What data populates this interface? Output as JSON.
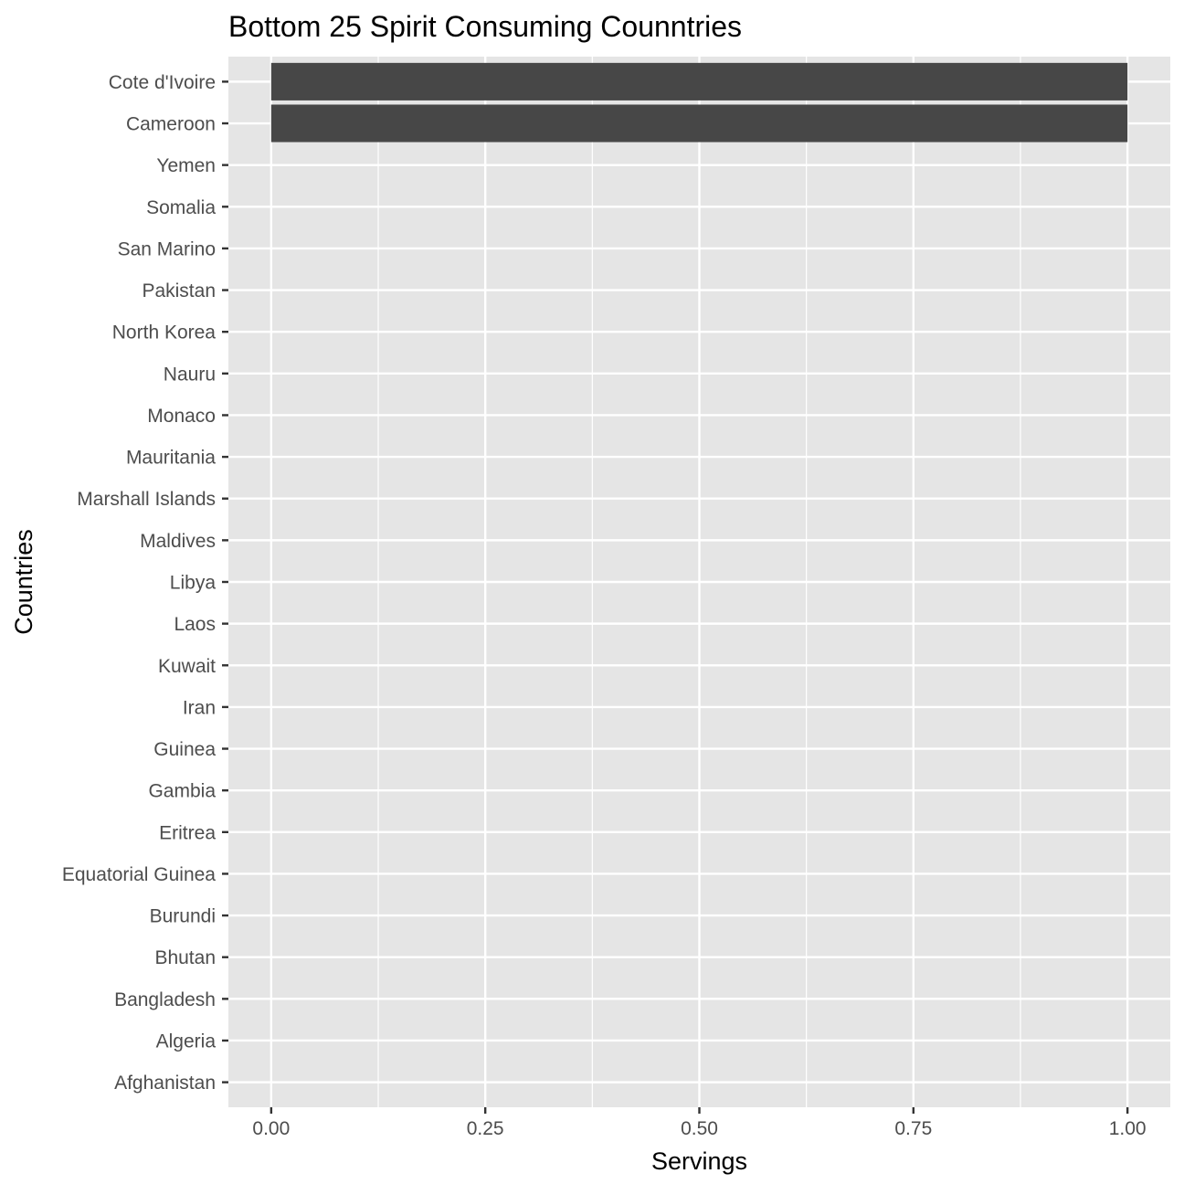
{
  "chart_data": {
    "type": "bar",
    "orientation": "horizontal",
    "title": "Bottom 25 Spirit Consuming Counntries",
    "xlabel": "Servings",
    "ylabel": "Countries",
    "categories": [
      "Cote d'Ivoire",
      "Cameroon",
      "Yemen",
      "Somalia",
      "San Marino",
      "Pakistan",
      "North Korea",
      "Nauru",
      "Monaco",
      "Mauritania",
      "Marshall Islands",
      "Maldives",
      "Libya",
      "Laos",
      "Kuwait",
      "Iran",
      "Guinea",
      "Gambia",
      "Eritrea",
      "Equatorial Guinea",
      "Burundi",
      "Bhutan",
      "Bangladesh",
      "Algeria",
      "Afghanistan"
    ],
    "values": [
      1,
      1,
      0,
      0,
      0,
      0,
      0,
      0,
      0,
      0,
      0,
      0,
      0,
      0,
      0,
      0,
      0,
      0,
      0,
      0,
      0,
      0,
      0,
      0,
      0
    ],
    "xlim": [
      -0.05,
      1.05
    ],
    "xticks": [
      0,
      0.25,
      0.5,
      0.75,
      1
    ],
    "xtick_labels": [
      "0.00",
      "0.25",
      "0.50",
      "0.75",
      "1.00"
    ],
    "grid": true,
    "colors": {
      "panel": "#e5e5e5",
      "grid_major": "#ffffff",
      "bar": "#474747",
      "tick": "#333333"
    }
  }
}
